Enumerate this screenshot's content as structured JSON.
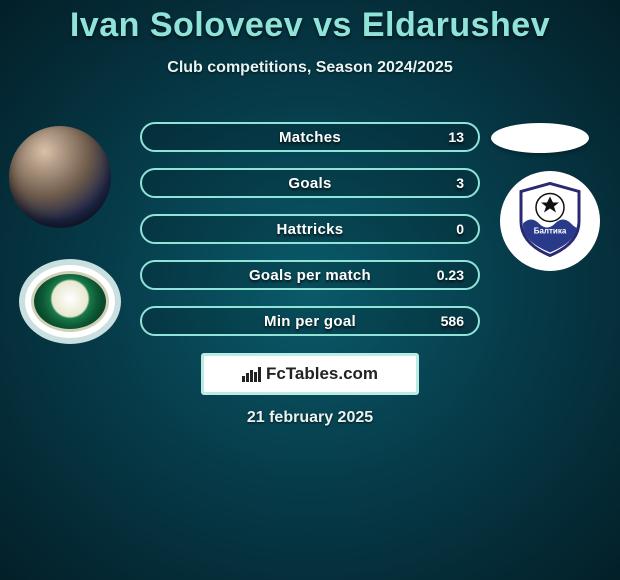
{
  "title": "Ivan Soloveev vs Eldarushev",
  "subtitle": "Club competitions, Season 2024/2025",
  "date": "21 february 2025",
  "brand": "FcTables.com",
  "colors": {
    "accent": "#8fe3d8",
    "text": "#ffffff",
    "bg_center": "#0a5a6a",
    "bg_edge": "#031f28"
  },
  "stats": [
    {
      "label": "Matches",
      "value": "13"
    },
    {
      "label": "Goals",
      "value": "3"
    },
    {
      "label": "Hattricks",
      "value": "0"
    },
    {
      "label": "Goals per match",
      "value": "0.23"
    },
    {
      "label": "Min per goal",
      "value": "586"
    }
  ]
}
